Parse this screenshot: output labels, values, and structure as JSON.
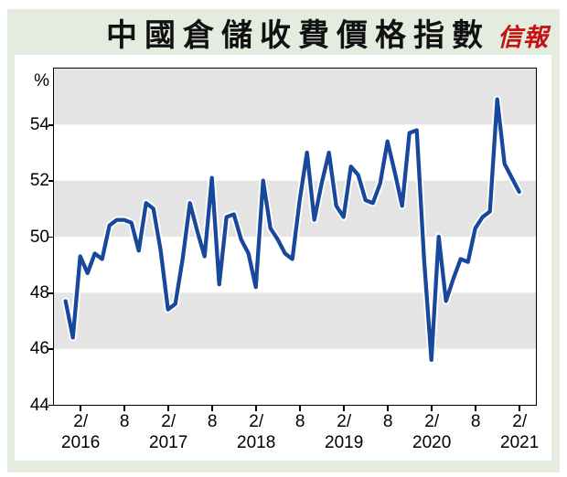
{
  "header": {
    "title": "中國倉儲收費價格指數",
    "logo": "信報"
  },
  "colors": {
    "card_background": "#e4ecdf",
    "panel_background": "#ffffff",
    "stripe_gray": "#e4e4e4",
    "line_blue": "#18489c",
    "line_halo": "#ffffff",
    "logo_red": "#c41212",
    "text_black": "#000000"
  },
  "chart_data": {
    "type": "line",
    "title": "中國倉儲收費價格指數",
    "unit_label": "%",
    "ylim": [
      44,
      56
    ],
    "y_ticks": [
      54,
      52,
      50,
      48,
      46,
      44
    ],
    "grid": "alternating horizontal gray bands, 2 units tall, gray at 54-56 / 50-52 / 46-48",
    "legend": "none",
    "x_start_month": "2015-12",
    "x_interval": "monthly",
    "values": [
      47.7,
      46.4,
      49.3,
      48.7,
      49.4,
      49.2,
      50.4,
      50.6,
      50.6,
      50.5,
      49.5,
      51.2,
      51.0,
      49.5,
      47.4,
      47.6,
      49.2,
      51.2,
      50.2,
      49.3,
      52.1,
      48.3,
      50.7,
      50.8,
      49.9,
      49.4,
      48.2,
      52.0,
      50.3,
      49.9,
      49.4,
      49.2,
      51.3,
      53.0,
      50.6,
      51.9,
      53.0,
      51.1,
      50.7,
      52.5,
      52.2,
      51.3,
      51.2,
      51.9,
      53.4,
      52.3,
      51.1,
      53.7,
      53.8,
      49.2,
      45.6,
      50.0,
      47.7,
      48.5,
      49.2,
      49.1,
      50.3,
      50.7,
      50.9,
      54.9,
      52.6,
      52.1,
      51.6
    ],
    "x_tick_labels": [
      {
        "month_index": 2,
        "line1": "2/",
        "line2": "2016"
      },
      {
        "month_index": 8,
        "line1": "8",
        "line2": ""
      },
      {
        "month_index": 14,
        "line1": "2/",
        "line2": "2017"
      },
      {
        "month_index": 20,
        "line1": "8",
        "line2": ""
      },
      {
        "month_index": 26,
        "line1": "2/",
        "line2": "2018"
      },
      {
        "month_index": 32,
        "line1": "8",
        "line2": ""
      },
      {
        "month_index": 38,
        "line1": "2/",
        "line2": "2019"
      },
      {
        "month_index": 44,
        "line1": "8",
        "line2": ""
      },
      {
        "month_index": 50,
        "line1": "2/",
        "line2": "2020"
      },
      {
        "month_index": 56,
        "line1": "8",
        "line2": ""
      },
      {
        "month_index": 62,
        "line1": "2/",
        "line2": "2021"
      }
    ]
  }
}
